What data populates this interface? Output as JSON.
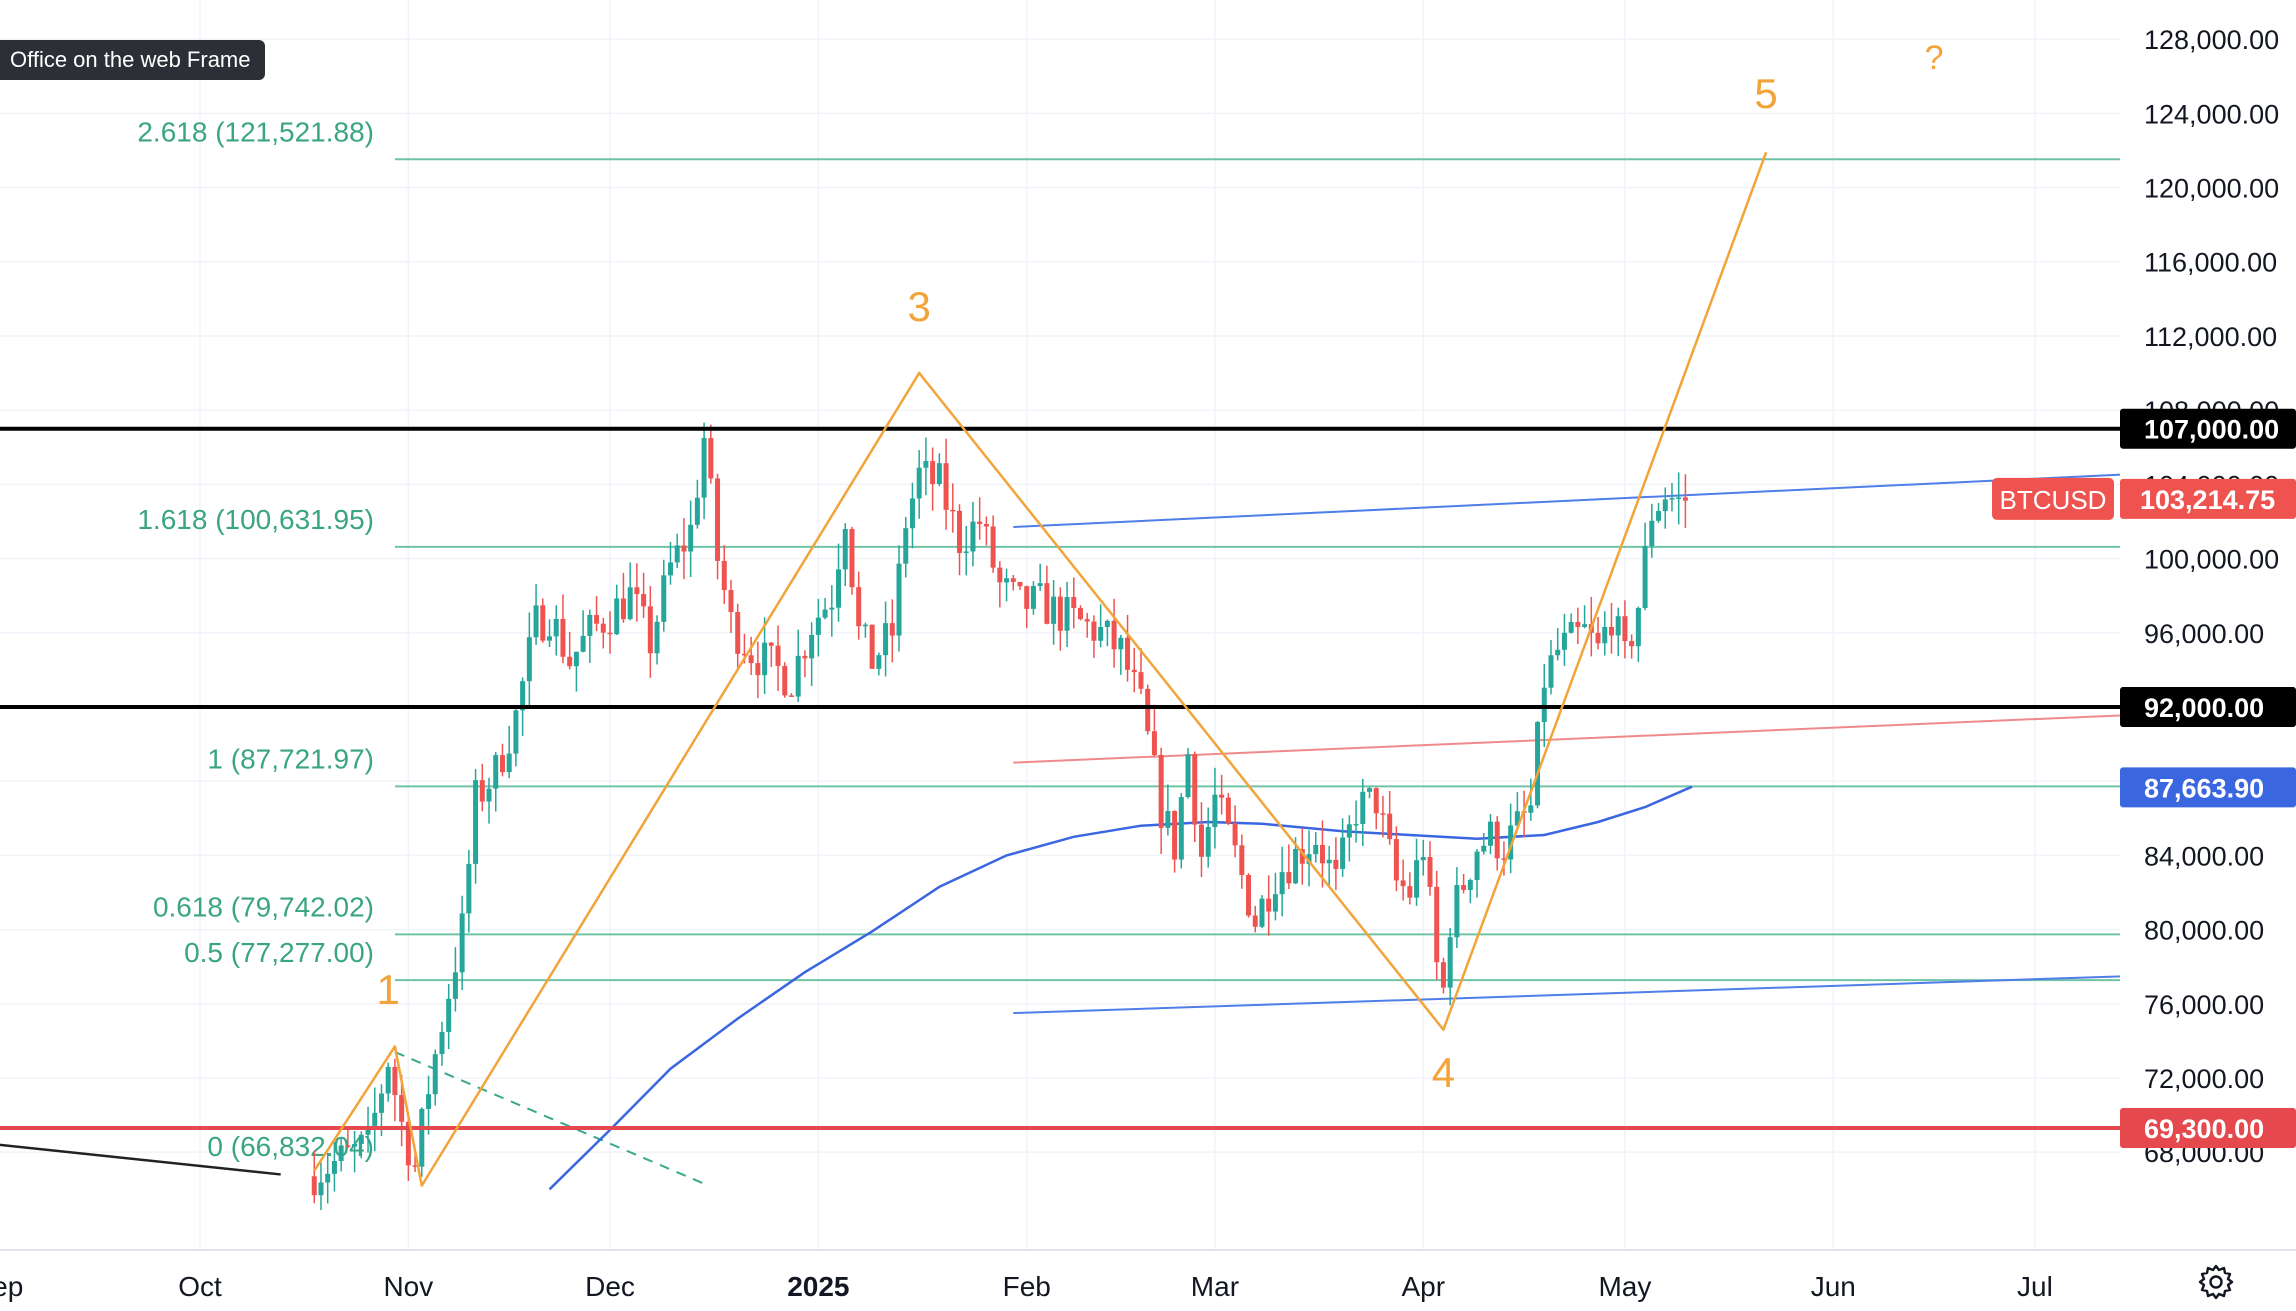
{
  "frame_label": "Office on the web Frame",
  "chart_data": {
    "type": "candlestick",
    "symbol": "BTCUSD",
    "last_price": "103,214.75",
    "ylim": [
      66500,
      128600
    ],
    "price_ticks": [
      68000,
      72000,
      76000,
      80000,
      84000,
      88000,
      92000,
      96000,
      100000,
      104000,
      108000,
      112000,
      116000,
      120000,
      124000,
      128000
    ],
    "price_tick_labels": [
      "68,000.00",
      "72,000.00",
      "76,000.00",
      "80,000.00",
      "84,000.00",
      "88,000.00",
      "92,000.00",
      "96,000.00",
      "100,000.00",
      "104,000.00",
      "108,000.00",
      "112,000.00",
      "116,000.00",
      "120,000.00",
      "124,000.00",
      "128,000.00"
    ],
    "time_labels": [
      {
        "label": "Sep",
        "day": -30
      },
      {
        "label": "Oct",
        "day": 0
      },
      {
        "label": "Nov",
        "day": 31
      },
      {
        "label": "Dec",
        "day": 61
      },
      {
        "label": "2025",
        "day": 92
      },
      {
        "label": "Feb",
        "day": 123
      },
      {
        "label": "Mar",
        "day": 151
      },
      {
        "label": "Apr",
        "day": 182
      },
      {
        "label": "May",
        "day": 212
      },
      {
        "label": "Jun",
        "day": 243
      },
      {
        "label": "Jul",
        "day": 273
      }
    ],
    "fib_levels": [
      {
        "ratio": "2.618",
        "price": 121521.88,
        "label": "2.618 (121,521.88)"
      },
      {
        "ratio": "1.618",
        "price": 100631.95,
        "label": "1.618 (100,631.95)"
      },
      {
        "ratio": "1",
        "price": 87721.97,
        "label": "1 (87,721.97)"
      },
      {
        "ratio": "0.618",
        "price": 79742.02,
        "label": "0.618 (79,742.02)"
      },
      {
        "ratio": "0.5",
        "price": 77277.0,
        "label": "0.5 (77,277.00)"
      },
      {
        "ratio": "0",
        "price": 66832.04,
        "label": "0 (66,832.04)"
      }
    ],
    "horizontal_levels": [
      {
        "price": 107000,
        "label": "107,000.00",
        "color": "#000000"
      },
      {
        "price": 92000,
        "label": "92,000.00",
        "color": "#000000"
      },
      {
        "price": 69300,
        "label": "69,300.00",
        "color": "#e5484d"
      }
    ],
    "ma_label": "87,663.90",
    "ma_points": [
      [
        52,
        66000
      ],
      [
        61,
        69200
      ],
      [
        70,
        72500
      ],
      [
        80,
        75200
      ],
      [
        90,
        77700
      ],
      [
        100,
        79900
      ],
      [
        110,
        82300
      ],
      [
        120,
        84000
      ],
      [
        130,
        85000
      ],
      [
        140,
        85600
      ],
      [
        150,
        85800
      ],
      [
        158,
        85700
      ],
      [
        170,
        85300
      ],
      [
        180,
        85100
      ],
      [
        190,
        84900
      ],
      [
        200,
        85100
      ],
      [
        208,
        85800
      ],
      [
        215,
        86600
      ],
      [
        222,
        87700
      ]
    ],
    "wave_points": [
      [
        17,
        67000
      ],
      [
        29,
        73700
      ],
      [
        33,
        66200
      ],
      [
        107,
        110000
      ],
      [
        185,
        74600
      ],
      [
        233,
        121900
      ]
    ],
    "wave_labels": [
      {
        "label": "1",
        "day": 28,
        "price": 76000
      },
      {
        "label": "3",
        "day": 107,
        "price": 112800
      },
      {
        "label": "4",
        "day": 185,
        "price": 71500
      },
      {
        "label": "5",
        "day": 233,
        "price": 124300
      },
      {
        "label": "?",
        "day": 258,
        "price": 126400
      }
    ],
    "trendlines": [
      {
        "name": "upper-channel",
        "from": [
          121,
          101700
        ],
        "to": [
          296,
          104700
        ],
        "color": "#4f7ee8"
      },
      {
        "name": "lower-channel",
        "from": [
          121,
          75500
        ],
        "to": [
          296,
          77600
        ],
        "color": "#4f7ee8"
      },
      {
        "name": "red-resistance",
        "from": [
          121,
          89000
        ],
        "to": [
          296,
          91700
        ],
        "color": "#f08a8a"
      },
      {
        "name": "old-support",
        "from": [
          -30,
          68400
        ],
        "to": [
          12,
          66800
        ],
        "color": "#222222"
      },
      {
        "name": "dashed-decline",
        "from": [
          29,
          73400
        ],
        "to": [
          75,
          66300
        ],
        "color": "#38a88a"
      }
    ],
    "candle_anchors": [
      [
        17,
        66700
      ],
      [
        22,
        67600
      ],
      [
        26,
        68400
      ],
      [
        29,
        73000
      ],
      [
        31,
        69500
      ],
      [
        33,
        67200
      ],
      [
        35,
        71500
      ],
      [
        37,
        75000
      ],
      [
        40,
        80000
      ],
      [
        42,
        87000
      ],
      [
        45,
        88500
      ],
      [
        48,
        91500
      ],
      [
        51,
        96500
      ],
      [
        53,
        97000
      ],
      [
        56,
        94500
      ],
      [
        59,
        96000
      ],
      [
        62,
        97000
      ],
      [
        65,
        98000
      ],
      [
        68,
        95500
      ],
      [
        71,
        99500
      ],
      [
        74,
        101500
      ],
      [
        76,
        106500
      ],
      [
        78,
        100000
      ],
      [
        80,
        96500
      ],
      [
        83,
        95000
      ],
      [
        86,
        94200
      ],
      [
        89,
        93500
      ],
      [
        92,
        96500
      ],
      [
        95,
        98000
      ],
      [
        97,
        102500
      ],
      [
        99,
        96000
      ],
      [
        101,
        94500
      ],
      [
        104,
        96000
      ],
      [
        106,
        102000
      ],
      [
        108,
        104500
      ],
      [
        111,
        104000
      ],
      [
        114,
        101000
      ],
      [
        117,
        102000
      ],
      [
        120,
        98500
      ],
      [
        123,
        97500
      ],
      [
        126,
        97600
      ],
      [
        129,
        97000
      ],
      [
        132,
        96500
      ],
      [
        135,
        96000
      ],
      [
        138,
        95000
      ],
      [
        141,
        92000
      ],
      [
        144,
        86500
      ],
      [
        146,
        84500
      ],
      [
        148,
        89500
      ],
      [
        150,
        84000
      ],
      [
        152,
        87000
      ],
      [
        155,
        84000
      ],
      [
        158,
        80500
      ],
      [
        161,
        83000
      ],
      [
        164,
        84000
      ],
      [
        167,
        85000
      ],
      [
        170,
        82500
      ],
      [
        173,
        86500
      ],
      [
        176,
        87000
      ],
      [
        179,
        82500
      ],
      [
        181,
        82000
      ],
      [
        183,
        84500
      ],
      [
        185,
        78000
      ],
      [
        186,
        76700
      ],
      [
        187,
        80500
      ],
      [
        189,
        82500
      ],
      [
        191,
        84500
      ],
      [
        193,
        85000
      ],
      [
        195,
        84500
      ],
      [
        197,
        85500
      ],
      [
        199,
        86500
      ],
      [
        201,
        93500
      ],
      [
        203,
        95000
      ],
      [
        205,
        95500
      ],
      [
        207,
        96000
      ],
      [
        209,
        95000
      ],
      [
        211,
        97000
      ],
      [
        213,
        94500
      ],
      [
        215,
        97500
      ],
      [
        217,
        102500
      ],
      [
        219,
        103500
      ],
      [
        221,
        103000
      ],
      [
        222,
        103214.75
      ]
    ]
  }
}
